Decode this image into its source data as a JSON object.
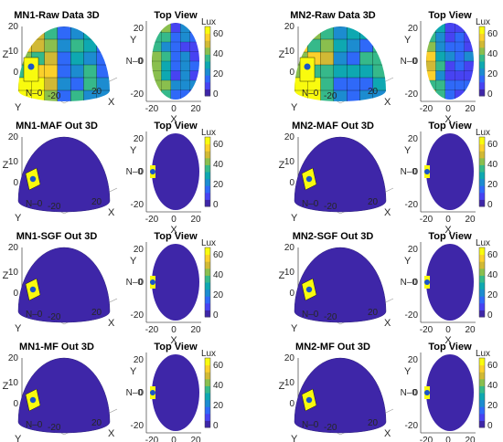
{
  "figure": {
    "colormap": [
      "#3e26a8",
      "#4743f2",
      "#2f69f8",
      "#1c8cd0",
      "#0ea8b1",
      "#36b98a",
      "#8abf4e",
      "#d1b935",
      "#fbd02b",
      "#f9fb0e"
    ],
    "tokens": {
      "north": "N",
      "dash": "–",
      "zero": "0",
      "lux": "Lux"
    }
  },
  "chart_data": [
    {
      "type": "surface3d",
      "id": "mn1-raw-3d",
      "title": "MN1-Raw Data 3D",
      "xlabel": "X",
      "ylabel": "Y",
      "zlabel": "Z",
      "x_ticks": [
        "-20",
        "20"
      ],
      "y_ticks": [
        "0",
        "-20"
      ],
      "z_ticks": [
        "0",
        "10",
        "20"
      ],
      "values": "raw lux data over hemisphere, 0-65 range"
    },
    {
      "type": "heatmap",
      "id": "mn1-raw-top",
      "title": "Top View",
      "xlabel": "X",
      "ylabel": "Y",
      "x_ticks": [
        "-20",
        "0",
        "20"
      ],
      "y_ticks": [
        "20",
        "0",
        "-20"
      ],
      "colorbar": {
        "label": "Lux",
        "ticks": [
          "60",
          "40",
          "20",
          "0"
        ],
        "range": [
          0,
          68
        ]
      }
    },
    {
      "type": "surface3d",
      "id": "mn2-raw-3d",
      "title": "MN2-Raw Data 3D",
      "xlabel": "X",
      "ylabel": "Y",
      "zlabel": "Z",
      "x_ticks": [
        "-20",
        "20"
      ],
      "y_ticks": [
        "0",
        "-20"
      ],
      "z_ticks": [
        "0",
        "10",
        "20"
      ]
    },
    {
      "type": "heatmap",
      "id": "mn2-raw-top",
      "title": "Top View",
      "xlabel": "X",
      "ylabel": "Y",
      "x_ticks": [
        "-20",
        "0",
        "20"
      ],
      "y_ticks": [
        "20",
        "0",
        "-20"
      ],
      "colorbar": {
        "label": "Lux",
        "ticks": [
          "60",
          "40",
          "20",
          "0"
        ],
        "range": [
          0,
          68
        ]
      }
    },
    {
      "type": "surface3d",
      "id": "mn1-maf-3d",
      "title": "MN1-MAF Out 3D",
      "xlabel": "X",
      "ylabel": "Y",
      "zlabel": "Z",
      "x_ticks": [
        "-20",
        "20"
      ],
      "y_ticks": [
        "0",
        "-20"
      ],
      "z_ticks": [
        "0",
        "10",
        "20"
      ]
    },
    {
      "type": "heatmap",
      "id": "mn1-maf-top",
      "title": "Top View",
      "xlabel": "X",
      "ylabel": "Y",
      "x_ticks": [
        "-20",
        "0",
        "20"
      ],
      "y_ticks": [
        "20",
        "0",
        "-20"
      ],
      "colorbar": {
        "label": "Lux",
        "ticks": [
          "60",
          "40",
          "20",
          "0"
        ],
        "range": [
          0,
          68
        ]
      }
    },
    {
      "type": "surface3d",
      "id": "mn2-maf-3d",
      "title": "MN2-MAF Out 3D",
      "xlabel": "X",
      "ylabel": "Y",
      "zlabel": "Z",
      "x_ticks": [
        "-20",
        "20"
      ],
      "y_ticks": [
        "0",
        "-20"
      ],
      "z_ticks": [
        "0",
        "10",
        "20"
      ]
    },
    {
      "type": "heatmap",
      "id": "mn2-maf-top",
      "title": "Top View",
      "xlabel": "X",
      "ylabel": "Y",
      "x_ticks": [
        "-20",
        "0",
        "20"
      ],
      "y_ticks": [
        "20",
        "0",
        "-20"
      ],
      "colorbar": {
        "label": "Lux",
        "ticks": [
          "60",
          "40",
          "20",
          "0"
        ],
        "range": [
          0,
          68
        ]
      }
    },
    {
      "type": "surface3d",
      "id": "mn1-sgf-3d",
      "title": "MN1-SGF Out 3D",
      "xlabel": "X",
      "ylabel": "Y",
      "zlabel": "Z",
      "x_ticks": [
        "-20",
        "20"
      ],
      "y_ticks": [
        "0",
        "-20"
      ],
      "z_ticks": [
        "0",
        "10",
        "20"
      ]
    },
    {
      "type": "heatmap",
      "id": "mn1-sgf-top",
      "title": "Top View",
      "xlabel": "X",
      "ylabel": "Y",
      "x_ticks": [
        "-20",
        "0",
        "20"
      ],
      "y_ticks": [
        "20",
        "0",
        "-20"
      ],
      "colorbar": {
        "label": "Lux",
        "ticks": [
          "60",
          "40",
          "20",
          "0"
        ],
        "range": [
          0,
          68
        ]
      }
    },
    {
      "type": "surface3d",
      "id": "mn2-sgf-3d",
      "title": "MN2-SGF Out 3D",
      "xlabel": "X",
      "ylabel": "Y",
      "zlabel": "Z",
      "x_ticks": [
        "-20",
        "20"
      ],
      "y_ticks": [
        "0",
        "-20"
      ],
      "z_ticks": [
        "0",
        "10",
        "20"
      ]
    },
    {
      "type": "heatmap",
      "id": "mn2-sgf-top",
      "title": "Top View",
      "xlabel": "X",
      "ylabel": "Y",
      "x_ticks": [
        "-20",
        "0",
        "20"
      ],
      "y_ticks": [
        "20",
        "0",
        "-20"
      ],
      "colorbar": {
        "label": "Lux",
        "ticks": [
          "60",
          "40",
          "20",
          "0"
        ],
        "range": [
          0,
          68
        ]
      }
    },
    {
      "type": "surface3d",
      "id": "mn1-mf-3d",
      "title": "MN1-MF Out 3D",
      "xlabel": "X",
      "ylabel": "Y",
      "zlabel": "Z",
      "x_ticks": [
        "-20",
        "20"
      ],
      "y_ticks": [
        "0",
        "-20"
      ],
      "z_ticks": [
        "0",
        "10",
        "20"
      ]
    },
    {
      "type": "heatmap",
      "id": "mn1-mf-top",
      "title": "Top View",
      "xlabel": "X",
      "ylabel": "Y",
      "x_ticks": [
        "-20",
        "0",
        "20"
      ],
      "y_ticks": [
        "20",
        "0",
        "-20"
      ],
      "colorbar": {
        "label": "Lux",
        "ticks": [
          "60",
          "40",
          "20",
          "0"
        ],
        "range": [
          0,
          68
        ]
      }
    },
    {
      "type": "surface3d",
      "id": "mn2-mf-3d",
      "title": "MN2-MF Out 3D",
      "xlabel": "X",
      "ylabel": "Y",
      "zlabel": "Z",
      "x_ticks": [
        "-20",
        "20"
      ],
      "y_ticks": [
        "0",
        "-20"
      ],
      "z_ticks": [
        "0",
        "10",
        "20"
      ]
    },
    {
      "type": "heatmap",
      "id": "mn2-mf-top",
      "title": "Top View",
      "xlabel": "X",
      "ylabel": "Y",
      "x_ticks": [
        "-20",
        "0",
        "20"
      ],
      "y_ticks": [
        "20",
        "0",
        "-20"
      ],
      "colorbar": {
        "label": "Lux",
        "ticks": [
          "60",
          "40",
          "20",
          "0"
        ],
        "range": [
          0,
          68
        ]
      }
    }
  ]
}
